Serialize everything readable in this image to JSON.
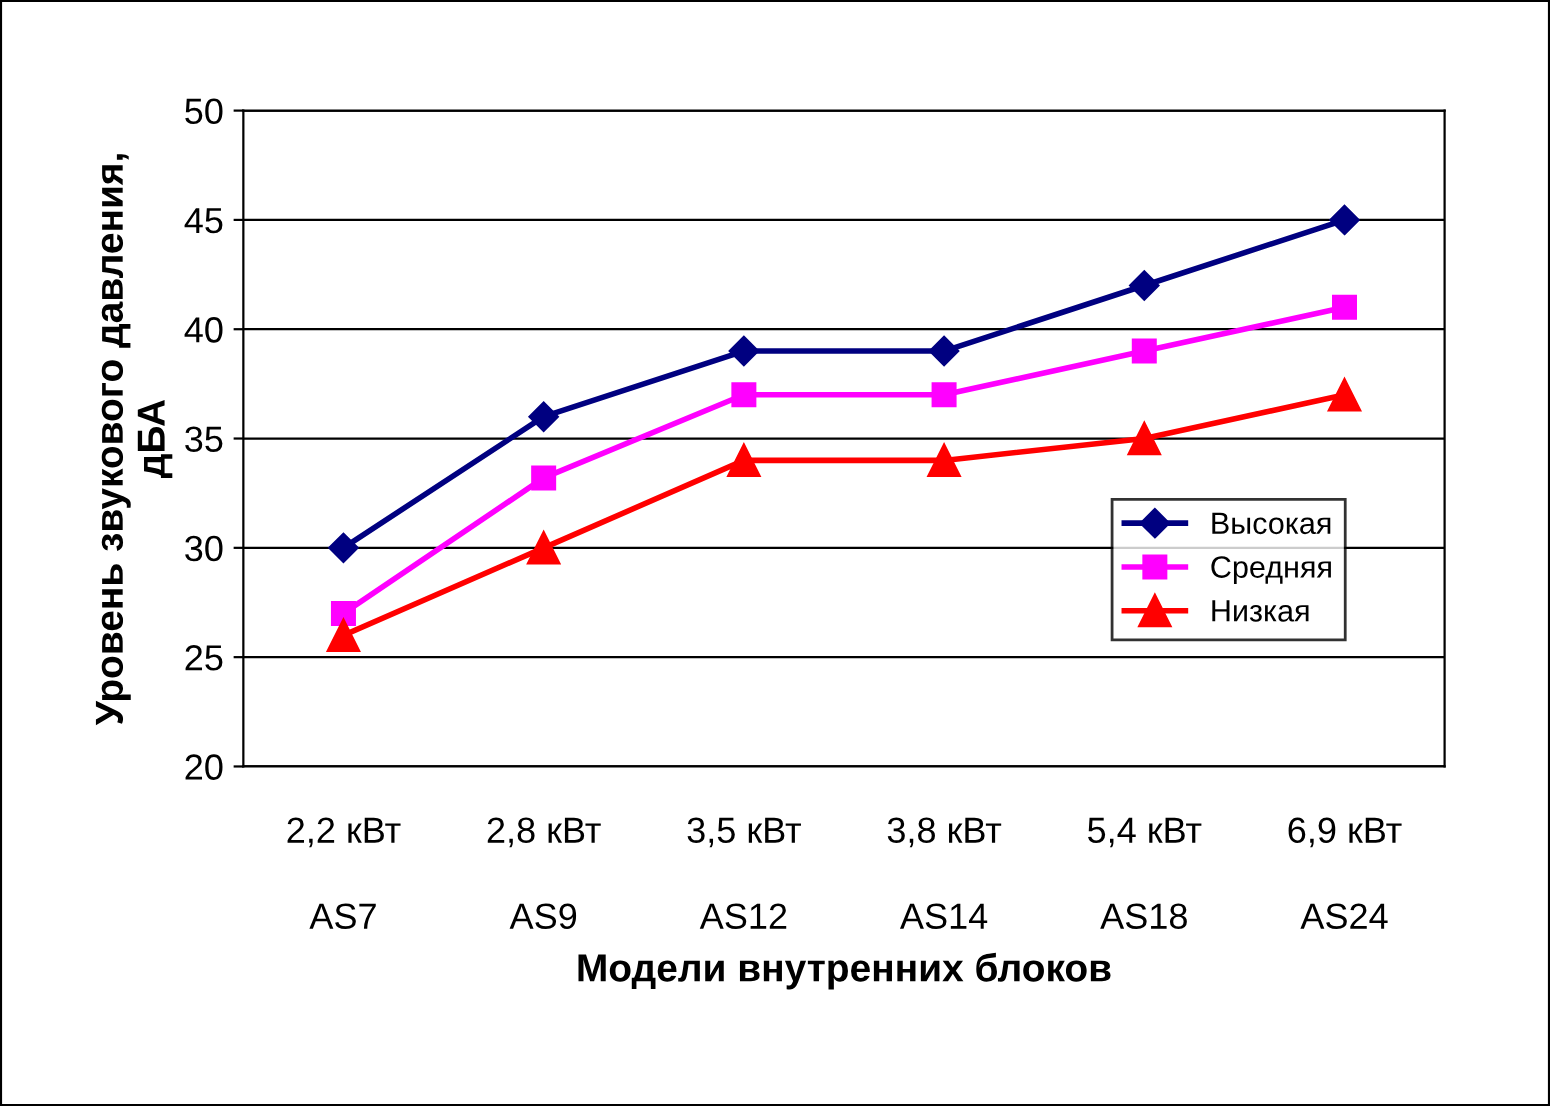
{
  "chart_data": {
    "type": "line",
    "xlabel": "Модели внутренних блоков",
    "ylabel": "Уровень звукового давления,\nдБА",
    "categories": [
      "2,2 кВт\nAS7",
      "2,8 кВт\nAS9",
      "3,5 кВт\nAS12",
      "3,8 кВт\nAS14",
      "5,4 кВт\nAS18",
      "6,9 кВт\nAS24"
    ],
    "series": [
      {
        "name": "Высокая",
        "color": "#000080",
        "marker": "diamond",
        "values": [
          30,
          36,
          39,
          39,
          42,
          45
        ]
      },
      {
        "name": "Средняя",
        "color": "#ff00ff",
        "marker": "square",
        "values": [
          27,
          33.2,
          37,
          37,
          39,
          41
        ]
      },
      {
        "name": "Низкая",
        "color": "#ff0000",
        "marker": "triangle",
        "values": [
          26,
          30,
          34,
          34,
          35,
          37
        ]
      }
    ],
    "ylim": [
      20,
      50
    ],
    "yticks": [
      20,
      25,
      30,
      35,
      40,
      45,
      50
    ],
    "grid": "y",
    "legend": "right",
    "line_style": "solid"
  }
}
